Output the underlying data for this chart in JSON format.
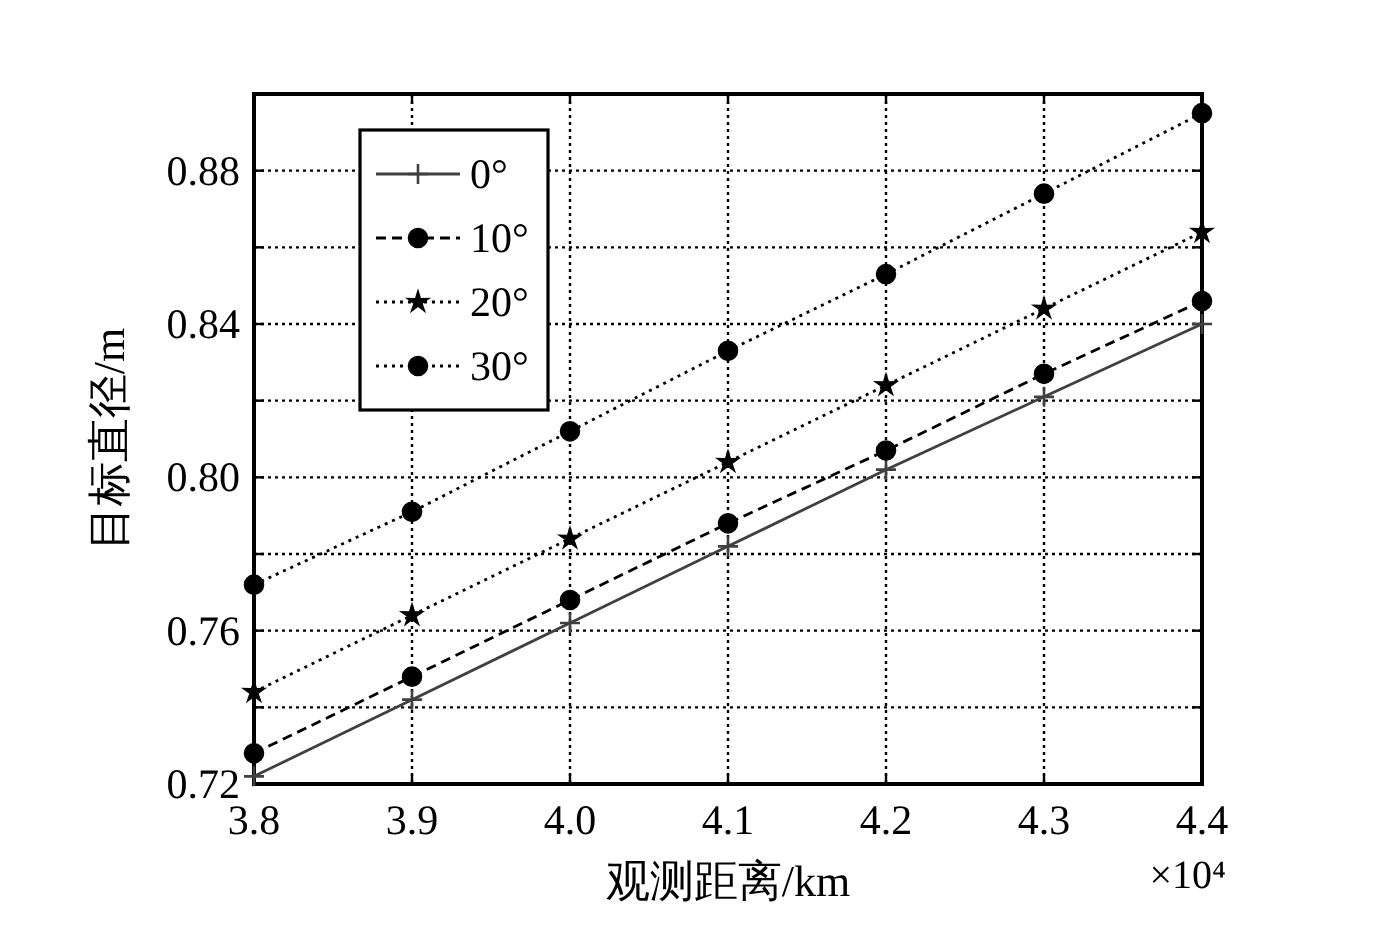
{
  "chart_data": {
    "type": "line",
    "xlabel": "观测距离/km",
    "ylabel": "目标直径/m",
    "annotations": [
      "×10⁴"
    ],
    "x": [
      3.8,
      3.9,
      4.0,
      4.1,
      4.2,
      4.3,
      4.4
    ],
    "xlim": [
      3.8,
      4.4
    ],
    "xticks": [
      3.8,
      3.9,
      {
        "value": 4.0,
        "label": "4.0"
      },
      4.1,
      4.2,
      4.3,
      4.4
    ],
    "ylim": [
      0.72,
      0.9
    ],
    "yticks": [
      0.72,
      {
        "value": 0.74,
        "label": null
      },
      0.76,
      {
        "value": 0.78,
        "label": null
      },
      {
        "value": 0.8,
        "label": "0.80"
      },
      {
        "value": 0.82,
        "label": null
      },
      0.84,
      {
        "value": 0.86,
        "label": null
      },
      0.88
    ],
    "grid": true,
    "legend": "top left",
    "series": [
      {
        "name": "0°",
        "color": "#404040",
        "marker": "cross",
        "line_style": "solid",
        "values": [
          0.722,
          0.742,
          0.762,
          0.782,
          0.802,
          0.821,
          0.84
        ]
      },
      {
        "name": "10°",
        "color": "#000000",
        "marker": "circle",
        "line_style": "dashed",
        "values": [
          0.728,
          0.748,
          0.768,
          0.788,
          0.807,
          0.827,
          0.846
        ]
      },
      {
        "name": "20°",
        "color": "#000000",
        "marker": "star",
        "line_style": "dotted",
        "values": [
          0.744,
          0.764,
          0.784,
          0.804,
          0.824,
          0.844,
          0.864
        ]
      },
      {
        "name": "30°",
        "color": "#000000",
        "marker": "circle",
        "line_style": "dotted",
        "values": [
          0.772,
          0.791,
          0.812,
          0.833,
          0.853,
          0.874,
          0.895
        ]
      }
    ]
  }
}
